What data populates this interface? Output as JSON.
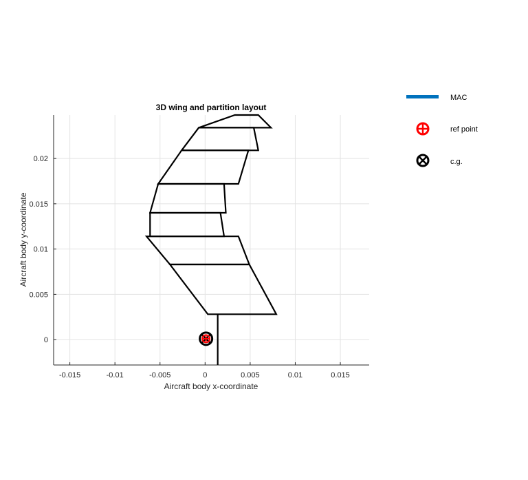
{
  "chart_data": {
    "type": "line",
    "title": "3D wing and partition layout",
    "xlabel": "Aircraft body x-coordinate",
    "ylabel": "Aircraft body y-coordinate",
    "xlim": [
      -0.0168,
      0.0182
    ],
    "ylim": [
      -0.0028,
      0.0248
    ],
    "x_ticks": [
      -0.015,
      -0.01,
      -0.005,
      0,
      0.005,
      0.01,
      0.015
    ],
    "x_tick_labels": [
      "-0.015",
      "-0.01",
      "-0.005",
      "0",
      "0.005",
      "0.01",
      "0.015"
    ],
    "y_ticks": [
      0,
      0.005,
      0.01,
      0.015,
      0.02
    ],
    "y_tick_labels": [
      "0",
      "0.005",
      "0.01",
      "0.015",
      "0.02"
    ],
    "grid": true,
    "legend_placement": "outside-right",
    "partitions": [
      [
        [
          0.0003,
          0.0028
        ],
        [
          0.0079,
          0.0028
        ],
        [
          0.0049,
          0.0083
        ],
        [
          -0.0039,
          0.0083
        ]
      ],
      [
        [
          -0.0039,
          0.0083
        ],
        [
          0.0049,
          0.0083
        ],
        [
          0.0037,
          0.0114
        ],
        [
          -0.0065,
          0.0114
        ]
      ],
      [
        [
          -0.0061,
          0.0114
        ],
        [
          0.0021,
          0.0114
        ],
        [
          0.0017,
          0.014
        ],
        [
          -0.0061,
          0.014
        ]
      ],
      [
        [
          -0.0061,
          0.014
        ],
        [
          0.0023,
          0.014
        ],
        [
          0.0021,
          0.0172
        ],
        [
          -0.0052,
          0.0172
        ]
      ],
      [
        [
          -0.0052,
          0.0172
        ],
        [
          0.0037,
          0.0172
        ],
        [
          0.0048,
          0.0209
        ],
        [
          -0.0026,
          0.0209
        ]
      ],
      [
        [
          -0.0026,
          0.0209
        ],
        [
          0.0059,
          0.0209
        ],
        [
          0.0054,
          0.0234
        ],
        [
          -0.0007,
          0.0234
        ]
      ],
      [
        [
          -0.0007,
          0.0234
        ],
        [
          0.0073,
          0.0234
        ],
        [
          0.0059,
          0.0248
        ],
        [
          0.0033,
          0.0248
        ]
      ]
    ],
    "centerline": {
      "x": 0.0014,
      "y_from": -0.0028,
      "y_to": 0.0028
    },
    "ref_point": {
      "x": 0.0001,
      "y": 0.0001
    },
    "cg_point": {
      "x": 0.0001,
      "y": 0.0001
    },
    "series": [
      {
        "name": "MAC",
        "color": "#0072bd"
      },
      {
        "name": "ref point",
        "color": "#ff0000"
      },
      {
        "name": "c.g.",
        "color": "#000000"
      }
    ]
  }
}
